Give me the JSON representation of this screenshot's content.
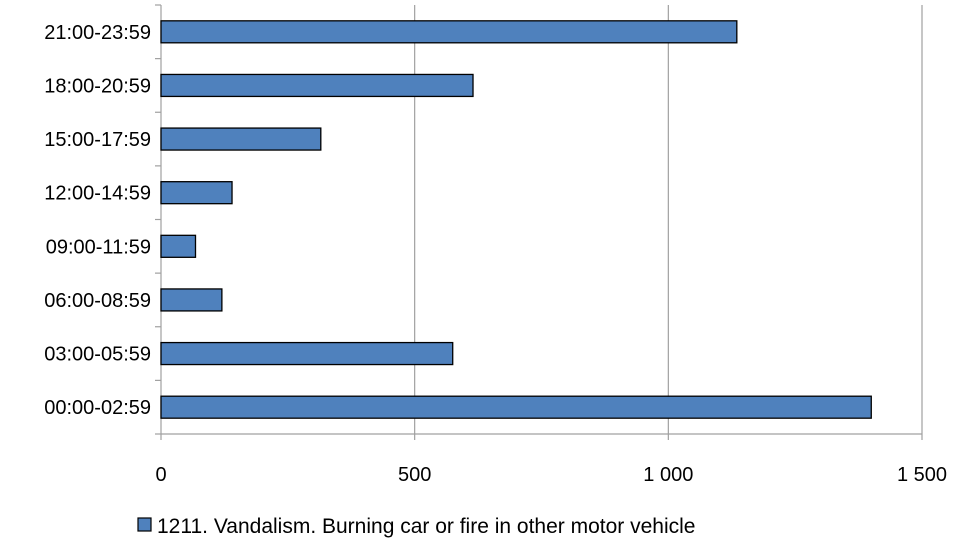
{
  "chart_data": {
    "type": "bar",
    "orientation": "horizontal",
    "categories": [
      "00:00-02:59",
      "03:00-05:59",
      "06:00-08:59",
      "09:00-11:59",
      "12:00-14:59",
      "15:00-17:59",
      "18:00-20:59",
      "21:00-23:59"
    ],
    "series": [
      {
        "name": "1211. Vandalism. Burning car or fire in other motor vehicle",
        "values": [
          1400,
          575,
          120,
          68,
          140,
          315,
          615,
          1135
        ],
        "color": "#4f81bd",
        "stroke": "#000000"
      }
    ],
    "xlim": [
      0,
      1500
    ],
    "x_ticks": [
      0,
      500,
      1000,
      1500
    ],
    "x_tick_labels": [
      "0",
      "500",
      "1 000",
      "1 500"
    ],
    "grid": "vertical",
    "grid_color": "#a0a0a0",
    "legend_position": "bottom"
  }
}
